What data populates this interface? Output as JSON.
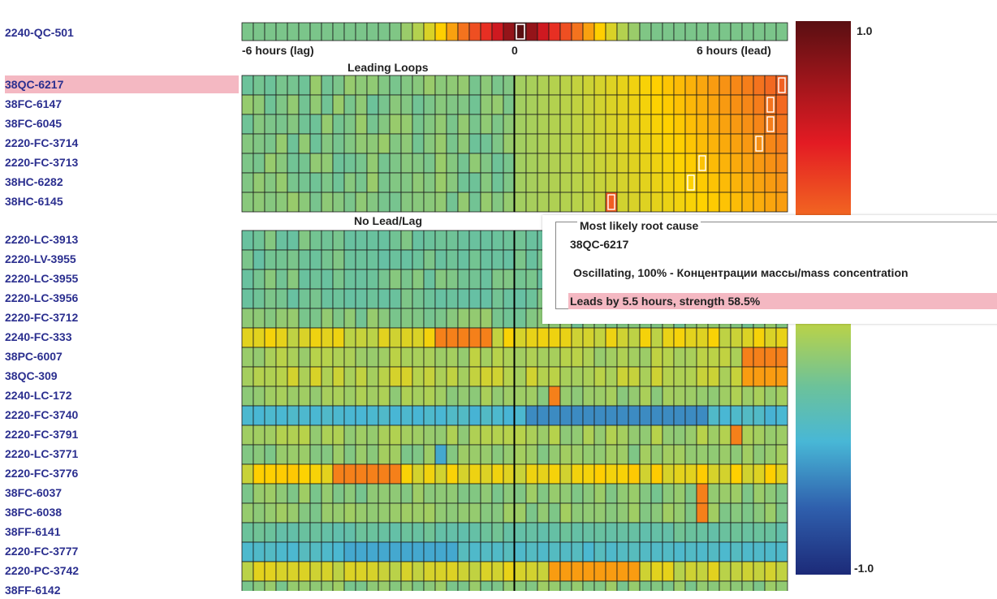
{
  "top_loop": "2240-QC-501",
  "axis": {
    "lag": "-6 hours (lag)",
    "zero": "0",
    "lead": "6 hours (lead)"
  },
  "sections": {
    "leading": "Leading Loops",
    "nolead": "No Lead/Lag"
  },
  "leading_loops": [
    {
      "name": "38QC-6217",
      "selected": true
    },
    {
      "name": "38FC-6147"
    },
    {
      "name": "38FC-6045"
    },
    {
      "name": "2220-FC-3714"
    },
    {
      "name": "2220-FC-3713"
    },
    {
      "name": "38HC-6282"
    },
    {
      "name": "38HC-6145"
    }
  ],
  "nolag_loops": [
    "2220-LC-3913",
    "2220-LV-3955",
    "2220-LC-3955",
    "2220-LC-3956",
    "2220-FC-3712",
    "2240-FC-333",
    "38PC-6007",
    "38QC-309",
    "2240-LC-172",
    "2220-FC-3740",
    "2220-FC-3791",
    "2220-LC-3771",
    "2220-FC-3776",
    "38FC-6037",
    "38FC-6038",
    "38FF-6141",
    "2220-FC-3777",
    "2220-PC-3742",
    "38FF-6142"
  ],
  "colorbar": {
    "max": "1.0",
    "min": "-1.0"
  },
  "tooltip": {
    "title": "Most likely root cause",
    "loop": "38QC-6217",
    "description": "Oscillating, 100% - Концентрации массы/mass concentration",
    "summary": "Leads by 5.5 hours, strength 58.5%"
  },
  "colors": {
    "selected_row": "#f4b8c2",
    "label_text": "#2b2f8f",
    "cell_border": "#1a1a1a"
  }
}
